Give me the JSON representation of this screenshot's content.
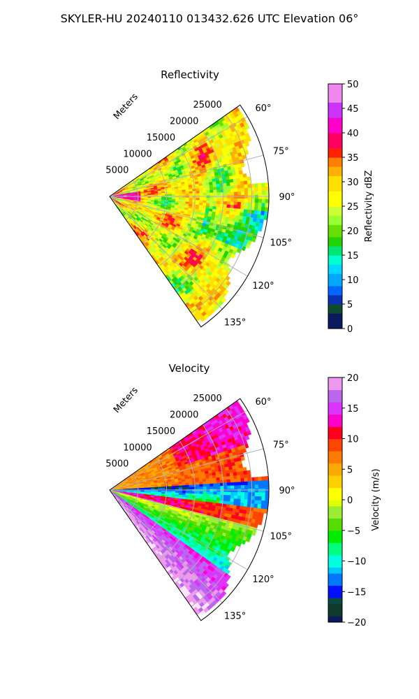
{
  "figure": {
    "title": "SKYLER-HU  20240110  013432.626 UTC Elevation 06°"
  },
  "chart_data": [
    {
      "type": "heatmap",
      "title": "Reflectivity",
      "range_label": "Meters",
      "range_ticks": [
        "5000",
        "10000",
        "15000",
        "20000",
        "25000"
      ],
      "range_values": [
        5000,
        10000,
        15000,
        20000,
        25000
      ],
      "azimuth_ticks": [
        "60°",
        "75°",
        "90°",
        "105°",
        "120°",
        "135°"
      ],
      "azimuth_values": [
        60,
        75,
        90,
        105,
        120,
        135
      ],
      "azimuth_range": [
        55,
        145
      ],
      "range_max": 28000,
      "grid": true,
      "colorbar": {
        "label": "Reflectivity dBZ",
        "range": [
          0,
          50
        ],
        "ticks": [
          "0",
          "5",
          "10",
          "15",
          "20",
          "25",
          "30",
          "35",
          "40",
          "45",
          "50"
        ],
        "tick_values": [
          0,
          5,
          10,
          15,
          20,
          25,
          30,
          35,
          40,
          45,
          50
        ],
        "colors": [
          [
            0,
            "#0b1a5c"
          ],
          [
            3,
            "#0f4a2e"
          ],
          [
            5,
            "#0a2fb0"
          ],
          [
            7,
            "#0066ff"
          ],
          [
            9,
            "#00a8ff"
          ],
          [
            11,
            "#00d8ff"
          ],
          [
            13,
            "#00ffd0"
          ],
          [
            15,
            "#00e676"
          ],
          [
            17,
            "#22d400"
          ],
          [
            19,
            "#66e000"
          ],
          [
            21,
            "#99ff33"
          ],
          [
            23,
            "#ccff33"
          ],
          [
            25,
            "#ffff00"
          ],
          [
            28,
            "#ffe000"
          ],
          [
            31,
            "#ffb000"
          ],
          [
            33,
            "#ff8000"
          ],
          [
            35,
            "#ff2000"
          ],
          [
            37,
            "#ff0060"
          ],
          [
            40,
            "#ff00cc"
          ],
          [
            43,
            "#cc33ff"
          ],
          [
            46,
            "#ee88ee"
          ],
          [
            50,
            "#ffe6ff"
          ]
        ]
      }
    },
    {
      "type": "heatmap",
      "title": "Velocity",
      "range_label": "Meters",
      "range_ticks": [
        "5000",
        "10000",
        "15000",
        "20000",
        "25000"
      ],
      "range_values": [
        5000,
        10000,
        15000,
        20000,
        25000
      ],
      "azimuth_ticks": [
        "60°",
        "75°",
        "90°",
        "105°",
        "120°",
        "135°"
      ],
      "azimuth_values": [
        60,
        75,
        90,
        105,
        120,
        135
      ],
      "azimuth_range": [
        55,
        145
      ],
      "range_max": 28000,
      "grid": true,
      "colorbar": {
        "label": "Velocity (m/s)",
        "range": [
          -20,
          20
        ],
        "ticks": [
          "−20",
          "−15",
          "−10",
          "−5",
          "0",
          "5",
          "10",
          "15",
          "20"
        ],
        "tick_values": [
          -20,
          -15,
          -10,
          -5,
          0,
          5,
          10,
          15,
          20
        ],
        "colors": [
          [
            -20,
            "#0b1a5c"
          ],
          [
            -19,
            "#0f3a2a"
          ],
          [
            -17,
            "#0a4a40"
          ],
          [
            -16,
            "#0010ff"
          ],
          [
            -14,
            "#0077ff"
          ],
          [
            -12,
            "#00c8ff"
          ],
          [
            -11,
            "#00ffe0"
          ],
          [
            -9,
            "#00ff80"
          ],
          [
            -7,
            "#00ee00"
          ],
          [
            -5,
            "#55dd00"
          ],
          [
            -3,
            "#99ee33"
          ],
          [
            -1,
            "#ddff00"
          ],
          [
            0,
            "#ffff00"
          ],
          [
            2,
            "#ffd000"
          ],
          [
            4,
            "#ffaa00"
          ],
          [
            6,
            "#ff7a00"
          ],
          [
            8,
            "#ff4400"
          ],
          [
            10,
            "#ff0020"
          ],
          [
            12,
            "#ff00cc"
          ],
          [
            14,
            "#dd33ff"
          ],
          [
            16,
            "#bb66ee"
          ],
          [
            18,
            "#ee99ee"
          ],
          [
            20,
            "#ffe6ff"
          ]
        ]
      }
    }
  ]
}
